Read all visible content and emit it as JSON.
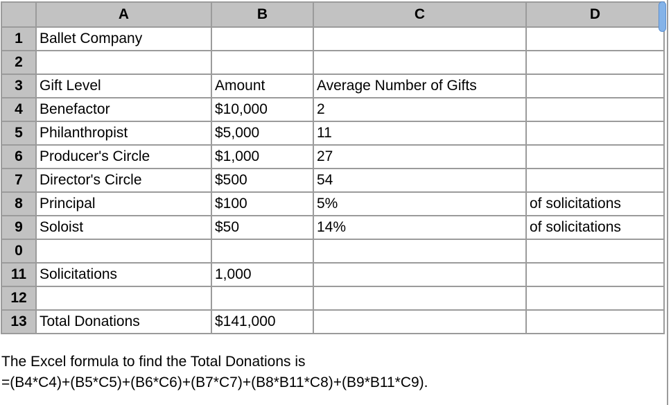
{
  "spreadsheet": {
    "column_headers": [
      "",
      "A",
      "B",
      "C",
      "D"
    ],
    "rows": [
      {
        "num": "1",
        "cells": [
          "Ballet Company",
          "",
          "",
          ""
        ]
      },
      {
        "num": "2",
        "cells": [
          "",
          "",
          "",
          ""
        ]
      },
      {
        "num": "3",
        "cells": [
          "Gift Level",
          "Amount",
          "Average Number of Gifts",
          ""
        ]
      },
      {
        "num": "4",
        "cells": [
          "Benefactor",
          "$10,000",
          "2",
          ""
        ]
      },
      {
        "num": "5",
        "cells": [
          "Philanthropist",
          "$5,000",
          "11",
          ""
        ]
      },
      {
        "num": "6",
        "cells": [
          "Producer's Circle",
          "$1,000",
          "27",
          ""
        ]
      },
      {
        "num": "7",
        "cells": [
          "Director's Circle",
          "$500",
          "54",
          ""
        ]
      },
      {
        "num": "8",
        "cells": [
          "Principal",
          "$100",
          "5%",
          "of solicitations"
        ]
      },
      {
        "num": "9",
        "cells": [
          "Soloist",
          "$50",
          "14%",
          "of solicitations"
        ]
      },
      {
        "num": "0",
        "cells": [
          "",
          "",
          "",
          ""
        ]
      },
      {
        "num": "11",
        "cells": [
          "Solicitations",
          "1,000",
          "",
          ""
        ]
      },
      {
        "num": "12",
        "cells": [
          "",
          "",
          "",
          ""
        ]
      },
      {
        "num": "13",
        "cells": [
          "Total Donations",
          "$141,000",
          "",
          ""
        ]
      }
    ]
  },
  "footer": {
    "line1": "The Excel formula to find the Total Donations is",
    "line2": "=(B4*C4)+(B5*C5)+(B6*C6)+(B7*C7)+(B8*B11*C8)+(B9*B11*C9)."
  },
  "scrollbar": {
    "orientation": "vertical",
    "thumb_position": "top"
  },
  "colors": {
    "header_fill": "#c2c2c2",
    "grid_border": "#9b9b9b",
    "cell_bg": "#ffffff",
    "text_color": "#000000",
    "thumb_fill": "#85b3e8",
    "thumb_border": "#5a8fd0",
    "edge_line": "#9b9b9b"
  }
}
